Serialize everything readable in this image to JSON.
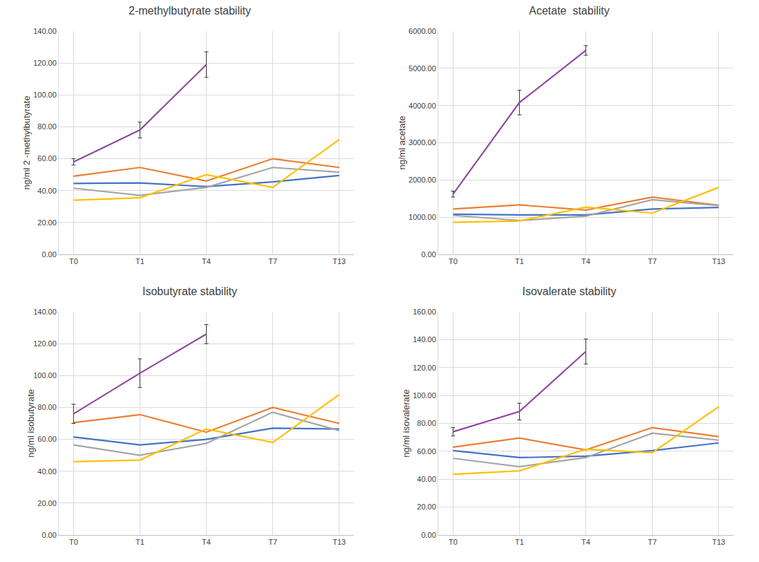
{
  "chart_data": [
    {
      "type": "line",
      "title": "2-methylbutyrate stability",
      "ylabel": "ng/ml 2 -methylbutyrate",
      "categories": [
        "T0",
        "T1",
        "T4",
        "T7",
        "T13"
      ],
      "series": [
        {
          "color": "#4472c4",
          "values": [
            44.5,
            44.8,
            42.5,
            45.5,
            49.5
          ]
        },
        {
          "color": "#ed7d31",
          "values": [
            49,
            54.5,
            46,
            60,
            54.5
          ]
        },
        {
          "color": "#a5a5a5",
          "values": [
            41.5,
            37,
            42,
            54.5,
            51.5
          ]
        },
        {
          "color": "#ffc000",
          "values": [
            34,
            35.5,
            50,
            42,
            72
          ]
        },
        {
          "color": "#8e4b9e",
          "values": [
            58,
            78,
            119,
            null,
            null
          ],
          "error": [
            2,
            5,
            8,
            null,
            null
          ]
        }
      ],
      "ylim": [
        0,
        140
      ],
      "yticks": [
        {
          "value": 0,
          "label": "0.00"
        },
        {
          "value": 20,
          "label": "20.00"
        },
        {
          "value": 40,
          "label": "40.00"
        },
        {
          "value": 60,
          "label": "60.00"
        },
        {
          "value": 80,
          "label": "80.00"
        },
        {
          "value": 100,
          "label": "100.00"
        },
        {
          "value": 120,
          "label": "120.00"
        },
        {
          "value": 140,
          "label": "140.00"
        }
      ],
      "grid": true
    },
    {
      "type": "line",
      "title": "Acetate  stability",
      "ylabel": "ng/ml acetate",
      "categories": [
        "T0",
        "T1",
        "T4",
        "T7",
        "T13"
      ],
      "series": [
        {
          "color": "#4472c4",
          "values": [
            1080,
            1060,
            1060,
            1220,
            1260
          ]
        },
        {
          "color": "#ed7d31",
          "values": [
            1220,
            1330,
            1190,
            1540,
            1320
          ]
        },
        {
          "color": "#a5a5a5",
          "values": [
            1050,
            910,
            1030,
            1470,
            1310
          ]
        },
        {
          "color": "#ffc000",
          "values": [
            860,
            900,
            1270,
            1110,
            1800
          ]
        },
        {
          "color": "#8e4b9e",
          "values": [
            1620,
            4080,
            5480,
            null,
            null
          ],
          "error": [
            80,
            330,
            130,
            null,
            null
          ]
        }
      ],
      "ylim": [
        0,
        6000
      ],
      "yticks": [
        {
          "value": 0,
          "label": "0.00"
        },
        {
          "value": 1000,
          "label": "1000.00"
        },
        {
          "value": 2000,
          "label": "2000.00"
        },
        {
          "value": 3000,
          "label": "3000.00"
        },
        {
          "value": 4000,
          "label": "4000.00"
        },
        {
          "value": 5000,
          "label": "5000.00"
        },
        {
          "value": 6000,
          "label": "6000.00"
        }
      ],
      "grid": true
    },
    {
      "type": "line",
      "title": "Isobutyrate stability",
      "ylabel": "ng/ml isobutyrate",
      "categories": [
        "T0",
        "T1",
        "T4",
        "T7",
        "T13"
      ],
      "series": [
        {
          "color": "#4472c4",
          "values": [
            61.5,
            56.5,
            60,
            67,
            66.5
          ]
        },
        {
          "color": "#ed7d31",
          "values": [
            70.5,
            75.5,
            64.5,
            80,
            70
          ]
        },
        {
          "color": "#a5a5a5",
          "values": [
            56.5,
            50,
            57.5,
            77,
            65.5
          ]
        },
        {
          "color": "#ffc000",
          "values": [
            46,
            47,
            66.5,
            58,
            88
          ]
        },
        {
          "color": "#8e4b9e",
          "values": [
            76,
            101.5,
            126,
            null,
            null
          ],
          "error": [
            6,
            9,
            6,
            null,
            null
          ]
        }
      ],
      "ylim": [
        0,
        140
      ],
      "yticks": [
        {
          "value": 0,
          "label": "0.00"
        },
        {
          "value": 20,
          "label": "20.00"
        },
        {
          "value": 40,
          "label": "40.00"
        },
        {
          "value": 60,
          "label": "60.00"
        },
        {
          "value": 80,
          "label": "80.00"
        },
        {
          "value": 100,
          "label": "100.00"
        },
        {
          "value": 120,
          "label": "120.00"
        },
        {
          "value": 140,
          "label": "140.00"
        }
      ],
      "grid": true
    },
    {
      "type": "line",
      "title": "Isovalerate stability",
      "ylabel": "ng/ml isovalerate",
      "categories": [
        "T0",
        "T1",
        "T4",
        "T7",
        "T13"
      ],
      "series": [
        {
          "color": "#4472c4",
          "values": [
            60.5,
            55.5,
            56.5,
            60.5,
            66
          ]
        },
        {
          "color": "#ed7d31",
          "values": [
            63,
            69.5,
            61,
            77,
            70.5
          ]
        },
        {
          "color": "#a5a5a5",
          "values": [
            55,
            49,
            55.5,
            73,
            68
          ]
        },
        {
          "color": "#ffc000",
          "values": [
            43.5,
            46,
            61.5,
            59,
            92
          ]
        },
        {
          "color": "#8e4b9e",
          "values": [
            74,
            88.5,
            131.5,
            null,
            null
          ],
          "error": [
            3,
            6,
            9,
            null,
            null
          ]
        }
      ],
      "ylim": [
        0,
        160
      ],
      "yticks": [
        {
          "value": 0,
          "label": "0.00"
        },
        {
          "value": 20,
          "label": "20.00"
        },
        {
          "value": 40,
          "label": "40.00"
        },
        {
          "value": 60,
          "label": "60.00"
        },
        {
          "value": 80,
          "label": "80.00"
        },
        {
          "value": 100,
          "label": "100.00"
        },
        {
          "value": 120,
          "label": "120.00"
        },
        {
          "value": 140,
          "label": "140.00"
        },
        {
          "value": 160,
          "label": "160.00"
        }
      ],
      "grid": true
    }
  ]
}
